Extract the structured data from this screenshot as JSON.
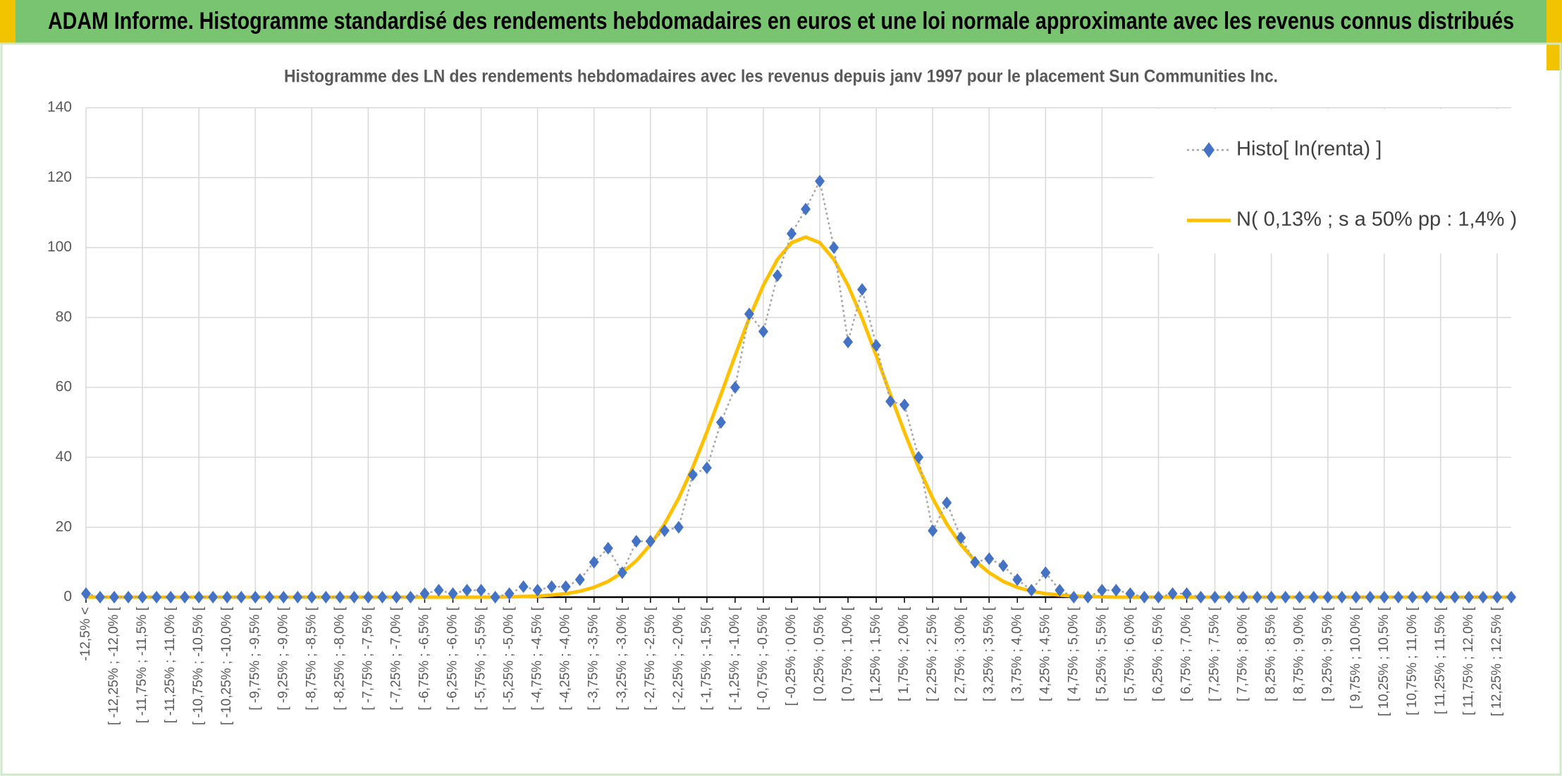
{
  "header": {
    "title": "ADAM Informe. Histogramme standardisé des rendements hebdomadaires en euros et une loi normale approximante avec les revenus connus distribués"
  },
  "chart_data": {
    "type": "line",
    "title": "Histogramme des LN des rendements hebdomadaires avec les revenus depuis janv 1997 pour le placement Sun Communities Inc.",
    "categories": [
      "-12,5% <",
      null,
      "[ -12,25% ; -12,0% [",
      null,
      "[ -11,75% ; -11,5% [",
      null,
      "[ -11,25% ; -11,0% [",
      null,
      "[ -10,75% ; -10,5% [",
      null,
      "[ -10,25% ; -10,0% [",
      null,
      "[ -9,75% ; -9,5% [",
      null,
      "[ -9,25% ; -9,0% [",
      null,
      "[ -8,75% ; -8,5% [",
      null,
      "[ -8,25% ; -8,0% [",
      null,
      "[ -7,75% ; -7,5% [",
      null,
      "[ -7,25% ; -7,0% [",
      null,
      "[ -6,75% ; -6,5% [",
      null,
      "[ -6,25% ; -6,0% [",
      null,
      "[ -5,75% ; -5,5% [",
      null,
      "[ -5,25% ; -5,0% [",
      null,
      "[ -4,75% ; -4,5% [",
      null,
      "[ -4,25% ; -4,0% [",
      null,
      "[ -3,75% ; -3,5% [",
      null,
      "[ -3,25% ; -3,0% [",
      null,
      "[ -2,75% ; -2,5% [",
      null,
      "[ -2,25% ; -2,0% [",
      null,
      "[ -1,75% ; -1,5% [",
      null,
      "[ -1,25% ; -1,0% [",
      null,
      "[ -0,75% ; -0,5% [",
      null,
      "[ -0,25% ; 0,0% [",
      null,
      "[ 0,25% ; 0,5% [",
      null,
      "[ 0,75% ; 1,0% [",
      null,
      "[ 1,25% ; 1,5% [",
      null,
      "[ 1,75% ; 2,0% [",
      null,
      "[ 2,25% ; 2,5% [",
      null,
      "[ 2,75% ; 3,0% [",
      null,
      "[ 3,25% ; 3,5% [",
      null,
      "[ 3,75% ; 4,0% [",
      null,
      "[ 4,25% ; 4,5% [",
      null,
      "[ 4,75% ; 5,0% [",
      null,
      "[ 5,25% ; 5,5% [",
      null,
      "[ 5,75% ; 6,0% [",
      null,
      "[ 6,25% ; 6,5% [",
      null,
      "[ 6,75% ; 7,0% [",
      null,
      "[ 7,25% ; 7,5% [",
      null,
      "[ 7,75% ; 8,0% [",
      null,
      "[ 8,25% ; 8,5% [",
      null,
      "[ 8,75% ; 9,0% [",
      null,
      "[ 9,25% ; 9,5% [",
      null,
      "[ 9,75% ; 10,0% [",
      null,
      "[ 10,25% ; 10,5% [",
      null,
      "[ 10,75% ; 11,0% [",
      null,
      "[ 11,25% ; 11,5% [",
      null,
      "[ 11,75% ; 12,0% [",
      null,
      "[ 12,25% ; 12,5% [",
      null
    ],
    "series": [
      {
        "name": "Histo[ ln(renta) ]",
        "color": "#4472c4",
        "values": [
          1,
          0,
          0,
          0,
          0,
          0,
          0,
          0,
          0,
          0,
          0,
          0,
          0,
          0,
          0,
          0,
          0,
          0,
          0,
          0,
          0,
          0,
          0,
          0,
          1,
          2,
          1,
          2,
          2,
          0,
          1,
          3,
          2,
          3,
          3,
          5,
          10,
          14,
          7,
          16,
          16,
          19,
          20,
          35,
          37,
          50,
          60,
          81,
          76,
          92,
          104,
          111,
          119,
          100,
          73,
          88,
          72,
          56,
          55,
          40,
          19,
          27,
          17,
          10,
          11,
          9,
          5,
          2,
          7,
          2,
          0,
          0,
          2,
          2,
          1,
          0,
          0,
          1,
          1,
          0,
          0,
          0,
          0,
          0,
          0,
          0,
          0,
          0,
          0,
          0,
          0,
          0,
          0,
          0,
          0,
          0,
          0,
          0,
          0,
          0,
          0,
          0
        ]
      },
      {
        "name": "N( 0,13% ; s a 50% pp : 1,4% )",
        "color": "#ffc000",
        "values": [
          0,
          0,
          0,
          0,
          0,
          0,
          0,
          0,
          0,
          0,
          0,
          0,
          0,
          0,
          0,
          0,
          0,
          0,
          0,
          0,
          0,
          0,
          0,
          0,
          0,
          0,
          0,
          0,
          0,
          0,
          0.1,
          0.2,
          0.3,
          0.6,
          1.0,
          1.7,
          2.8,
          4.5,
          7.0,
          10.4,
          15.0,
          20.9,
          28.3,
          37.1,
          47.2,
          58.0,
          69.1,
          79.8,
          89.2,
          96.6,
          101.4,
          103,
          101.4,
          96.6,
          89.2,
          79.8,
          69.1,
          58.0,
          47.2,
          37.1,
          28.3,
          20.9,
          15.0,
          10.4,
          7.0,
          4.5,
          2.8,
          1.7,
          1.0,
          0.6,
          0.3,
          0.2,
          0.1,
          0,
          0,
          0,
          0,
          0,
          0,
          0,
          0,
          0,
          0,
          0,
          0,
          0,
          0,
          0,
          0,
          0,
          0,
          0,
          0,
          0,
          0,
          0,
          0,
          0,
          0,
          0,
          0,
          0
        ]
      }
    ],
    "ylim": [
      0,
      140
    ],
    "yticks": [
      0,
      20,
      40,
      60,
      80,
      100,
      120,
      140
    ],
    "grid": true,
    "legend": "top-right"
  }
}
